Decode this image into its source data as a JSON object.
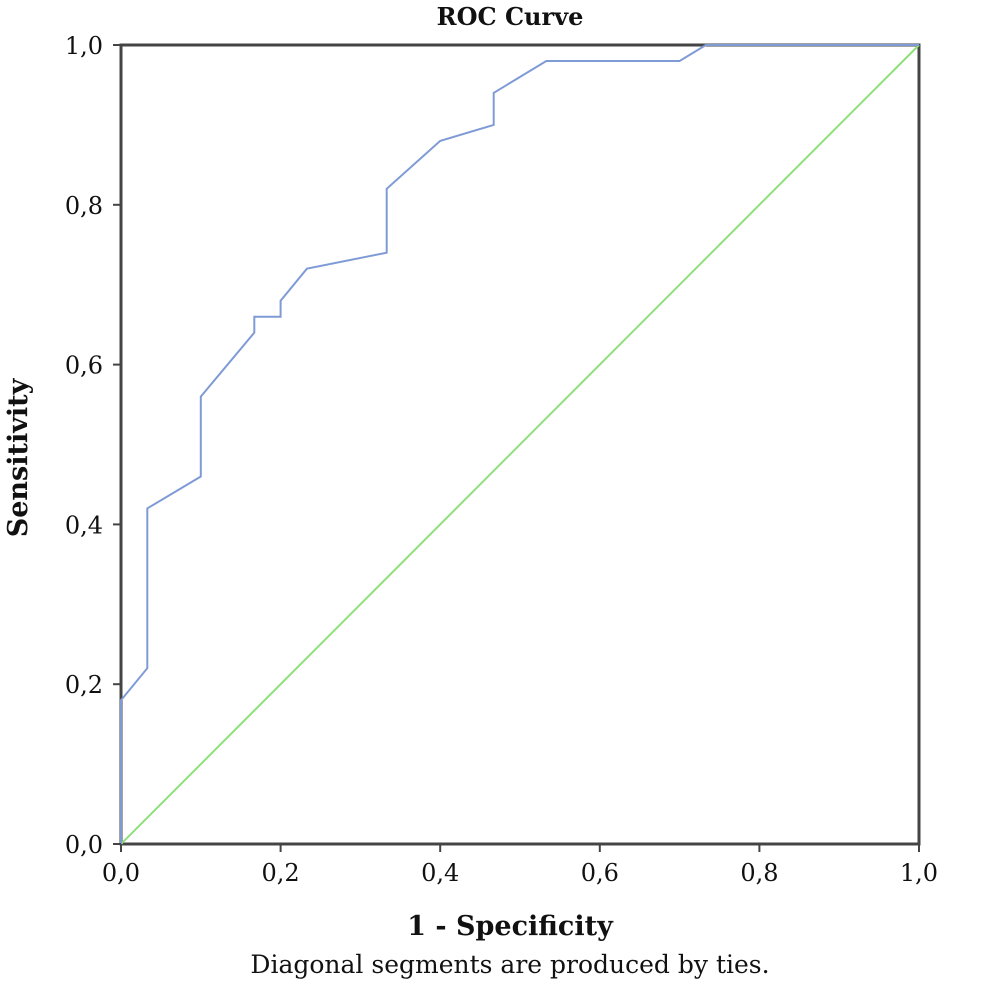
{
  "chart_data": {
    "type": "line",
    "title": "ROC Curve",
    "xlabel": "1 - Specificity",
    "ylabel": "Sensitivity",
    "footnote": "Diagonal segments are produced by ties.",
    "xlim": [
      0,
      1
    ],
    "ylim": [
      0,
      1
    ],
    "x_ticks": [
      "0,0",
      "0,2",
      "0,4",
      "0,6",
      "0,8",
      "1,0"
    ],
    "y_ticks": [
      "0,0",
      "0,2",
      "0,4",
      "0,6",
      "0,8",
      "1,0"
    ],
    "grid": false,
    "series": [
      {
        "color": "#7f9bd6",
        "points": [
          [
            0,
            0
          ],
          [
            0,
            0.18
          ],
          [
            0.033,
            0.22
          ],
          [
            0.033,
            0.42
          ],
          [
            0.1,
            0.46
          ],
          [
            0.1,
            0.56
          ],
          [
            0.167,
            0.64
          ],
          [
            0.167,
            0.66
          ],
          [
            0.2,
            0.66
          ],
          [
            0.2,
            0.68
          ],
          [
            0.233,
            0.72
          ],
          [
            0.333,
            0.74
          ],
          [
            0.333,
            0.82
          ],
          [
            0.4,
            0.88
          ],
          [
            0.467,
            0.9
          ],
          [
            0.467,
            0.94
          ],
          [
            0.533,
            0.98
          ],
          [
            0.7,
            0.98
          ],
          [
            0.733,
            1.0
          ],
          [
            1.0,
            1.0
          ]
        ]
      },
      {
        "color": "#8fe07a",
        "points": [
          [
            0,
            0
          ],
          [
            1,
            1
          ]
        ]
      }
    ]
  }
}
